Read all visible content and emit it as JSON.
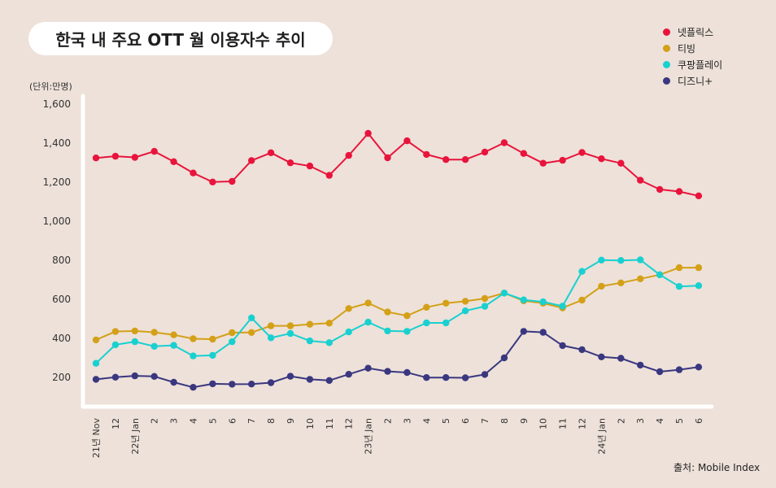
{
  "title": "한국 내 주요 OTT 월 이용자수 추이",
  "unit_label": "(단위:만명)",
  "source": "출처: Mobile Index",
  "chart_data": {
    "type": "line",
    "title": "한국 내 주요 OTT 월 이용자수 추이",
    "ylabel": "(단위:만명)",
    "ylim": [
      0,
      1600
    ],
    "y_ticks": [
      "200",
      "400",
      "600",
      "800",
      "1,000",
      "1,200",
      "1,400",
      "1,600"
    ],
    "y_tick_values": [
      200,
      400,
      600,
      800,
      1000,
      1200,
      1400,
      1600
    ],
    "grid": false,
    "legend_position": "top-right",
    "x": [
      "21년 Nov",
      "12",
      "22년 Jan",
      "2",
      "3",
      "4",
      "5",
      "6",
      "7",
      "8",
      "9",
      "10",
      "11",
      "12",
      "23년 Jan",
      "2",
      "3",
      "4",
      "5",
      "6",
      "7",
      "8",
      "9",
      "10",
      "11",
      "12",
      "24년 Jan",
      "2",
      "3",
      "4",
      "5",
      "6"
    ],
    "series": [
      {
        "name": "넷플릭스",
        "color": "#e8143c",
        "values": [
          1324,
          1333,
          1327,
          1358,
          1305,
          1247,
          1201,
          1204,
          1311,
          1351,
          1299,
          1283,
          1235,
          1337,
          1450,
          1325,
          1412,
          1342,
          1316,
          1316,
          1354,
          1402,
          1347,
          1297,
          1312,
          1352,
          1320,
          1297,
          1210,
          1163,
          1152,
          1130
        ]
      },
      {
        "name": "티빙",
        "color": "#d4a017",
        "values": [
          392,
          435,
          438,
          431,
          418,
          398,
          396,
          429,
          430,
          464,
          464,
          472,
          478,
          553,
          581,
          535,
          516,
          559,
          580,
          590,
          604,
          632,
          592,
          580,
          556,
          596,
          667,
          684,
          705,
          726,
          762,
          762
        ]
      },
      {
        "name": "쿠팡플레이",
        "color": "#19d0d0",
        "values": [
          272,
          367,
          383,
          359,
          364,
          310,
          313,
          383,
          505,
          403,
          425,
          387,
          378,
          433,
          483,
          438,
          436,
          479,
          479,
          541,
          564,
          632,
          597,
          587,
          565,
          743,
          801,
          799,
          802,
          726,
          666,
          670
        ]
      },
      {
        "name": "디즈니+",
        "color": "#3a3780",
        "values": [
          190,
          201,
          208,
          205,
          175,
          149,
          167,
          165,
          166,
          173,
          206,
          190,
          184,
          216,
          247,
          231,
          225,
          199,
          199,
          198,
          215,
          300,
          436,
          431,
          363,
          342,
          305,
          298,
          263,
          229,
          239,
          253
        ]
      }
    ]
  }
}
